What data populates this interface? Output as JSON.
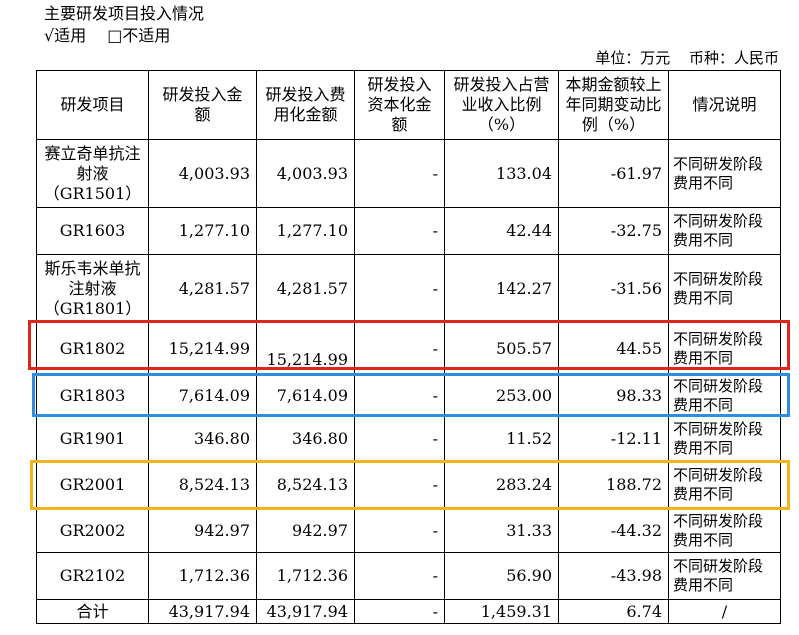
{
  "heading": {
    "title": "主要研发项目投入情况",
    "applicable_option": "√适用",
    "not_applicable_option": "□不适用"
  },
  "unit_line": {
    "unit": "单位：万元",
    "currency": "币种：人民币"
  },
  "table": {
    "columns": [
      "研发项目",
      "研发投入金额",
      "研发投入费用化金额",
      "研发投入资本化金额",
      "研发投入占营业收入比例（%）",
      "本期金额较上年同期变动比例（%）",
      "情况说明"
    ],
    "rows": [
      {
        "project": "赛立奇单抗注射液（GR1501）",
        "rd_investment": "4,003.93",
        "expensed": "4,003.93",
        "capitalized": "-",
        "revenue_ratio": "133.04",
        "yoy_change": "-61.97",
        "note": "不同研发阶段费用不同"
      },
      {
        "project": "GR1603",
        "rd_investment": "1,277.10",
        "expensed": "1,277.10",
        "capitalized": "-",
        "revenue_ratio": "42.44",
        "yoy_change": "-32.75",
        "note": "不同研发阶段费用不同"
      },
      {
        "project": "斯乐韦米单抗注射液（GR1801）",
        "rd_investment": "4,281.57",
        "expensed": "4,281.57",
        "capitalized": "-",
        "revenue_ratio": "142.27",
        "yoy_change": "-31.56",
        "note": "不同研发阶段费用不同"
      },
      {
        "project": "GR1802",
        "rd_investment": "15,214.99",
        "expensed": "15,214.99",
        "capitalized": "-",
        "revenue_ratio": "505.57",
        "yoy_change": "44.55",
        "note": "不同研发阶段费用不同"
      },
      {
        "project": "GR1803",
        "rd_investment": "7,614.09",
        "expensed": "7,614.09",
        "capitalized": "-",
        "revenue_ratio": "253.00",
        "yoy_change": "98.33",
        "note": "不同研发阶段费用不同"
      },
      {
        "project": "GR1901",
        "rd_investment": "346.80",
        "expensed": "346.80",
        "capitalized": "-",
        "revenue_ratio": "11.52",
        "yoy_change": "-12.11",
        "note": "不同研发阶段费用不同"
      },
      {
        "project": "GR2001",
        "rd_investment": "8,524.13",
        "expensed": "8,524.13",
        "capitalized": "-",
        "revenue_ratio": "283.24",
        "yoy_change": "188.72",
        "note": "不同研发阶段费用不同"
      },
      {
        "project": "GR2002",
        "rd_investment": "942.97",
        "expensed": "942.97",
        "capitalized": "-",
        "revenue_ratio": "31.33",
        "yoy_change": "-44.32",
        "note": "不同研发阶段费用不同"
      },
      {
        "project": "GR2102",
        "rd_investment": "1,712.36",
        "expensed": "1,712.36",
        "capitalized": "-",
        "revenue_ratio": "56.90",
        "yoy_change": "-43.98",
        "note": "不同研发阶段费用不同"
      }
    ],
    "total": {
      "project": "合计",
      "rd_investment": "43,917.94",
      "expensed": "43,917.94",
      "capitalized": "-",
      "revenue_ratio": "1,459.31",
      "yoy_change": "6.74",
      "note": "/"
    }
  },
  "highlight_colors": {
    "red": "#e0261b",
    "blue": "#2d8ee0",
    "yellow": "#f2b51b"
  }
}
